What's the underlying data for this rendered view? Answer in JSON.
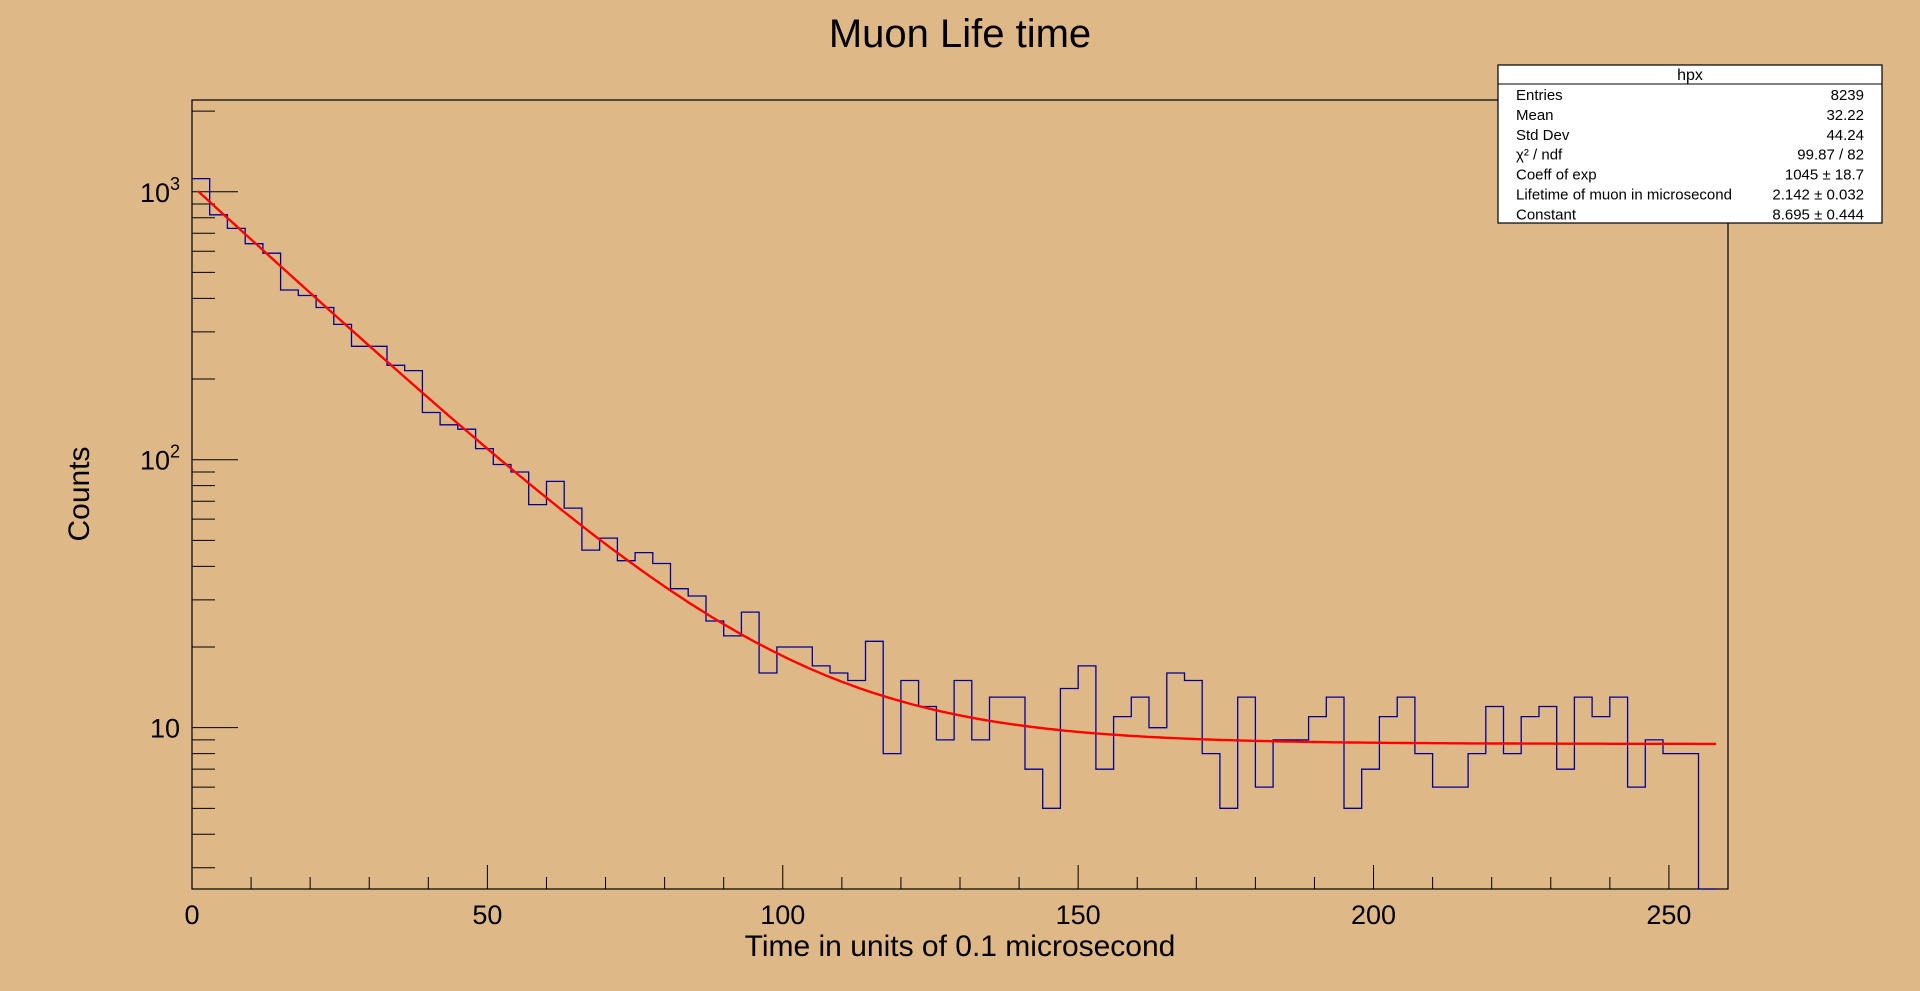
{
  "chart_data": {
    "type": "line",
    "title": "Muon Life time",
    "xlabel": "Time in units of 0.1 microsecond",
    "ylabel": "Counts",
    "xlim": [
      0,
      260
    ],
    "ylim": [
      2.5,
      2200
    ],
    "yscale": "log",
    "x_ticks": [
      0,
      50,
      100,
      150,
      200,
      250
    ],
    "y_ticks": [
      {
        "value": 10,
        "base": "10",
        "exp": ""
      },
      {
        "value": 100,
        "base": "10",
        "exp": "2"
      },
      {
        "value": 1000,
        "base": "10",
        "exp": "3"
      }
    ],
    "grid": false,
    "legend": "none",
    "histogram": {
      "name": "hpx",
      "color": "#000099",
      "bin_width": 3,
      "bin_edges_start": 0,
      "counts": [
        1120,
        820,
        730,
        640,
        590,
        430,
        410,
        370,
        320,
        265,
        265,
        225,
        215,
        150,
        135,
        130,
        110,
        96,
        90,
        68,
        83,
        66,
        46,
        51,
        42,
        45,
        41,
        33,
        31,
        25,
        22,
        27,
        16,
        20,
        20,
        17,
        16,
        15,
        21,
        8,
        15,
        12,
        9,
        15,
        9,
        13,
        13,
        7,
        5,
        14,
        17,
        7,
        11,
        13,
        10,
        16,
        15,
        8,
        5,
        13,
        6,
        9,
        9,
        11,
        13,
        5,
        7,
        11,
        13,
        8,
        6,
        6,
        8,
        12,
        8,
        11,
        12,
        7,
        13,
        11,
        13,
        6,
        9,
        8,
        8,
        2.5
      ]
    },
    "fit": {
      "name": "fit",
      "color": "#ff0000",
      "x_range": [
        1,
        258
      ],
      "model": "Coeff * exp(-x / (10*Lifetime)) + Constant",
      "coeff": 1045,
      "lifetime": 2.142,
      "constant": 8.695
    },
    "stats_box": {
      "header": "hpx",
      "rows": [
        {
          "label": "Entries",
          "value": "8239"
        },
        {
          "label": "Mean",
          "value": "32.22"
        },
        {
          "label": "Std Dev",
          "value": "44.24"
        },
        {
          "label": "χ² / ndf",
          "value": "99.87 / 82"
        },
        {
          "label": "Coeff of exp",
          "value": "1045 ± 18.7"
        },
        {
          "label": "Lifetime of muon in microsecond",
          "value": "2.142 ± 0.032"
        },
        {
          "label": "Constant",
          "value": "8.695 ± 0.444"
        }
      ]
    },
    "colors": {
      "background": "#deb887",
      "frame": "#000000",
      "histogram": "#000099",
      "fit": "#ff0000",
      "stats_fill": "#ffffff"
    }
  }
}
